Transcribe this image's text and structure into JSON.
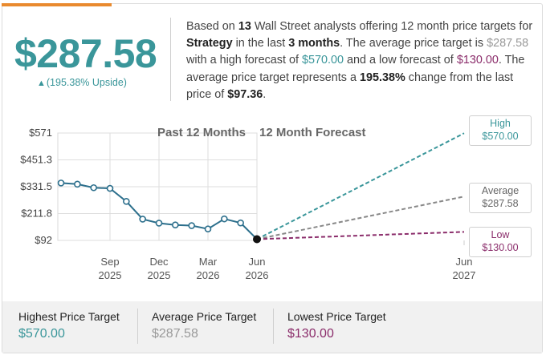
{
  "summary": {
    "price": "$287.58",
    "upside_arrow": "▲",
    "upside": "(195.38% Upside)",
    "desc_parts": {
      "p1": "Based on ",
      "analysts": "13",
      "p2": " Wall Street analysts offering 12 month price targets for ",
      "company": "Strategy",
      "p3": " in the last ",
      "months": "3 months",
      "p4": ". The average price target is ",
      "avg": "$287.58",
      "p5": " with a high forecast of ",
      "high": "$570.00",
      "p6": " and a low forecast of ",
      "low": "$130.00",
      "p7": ". The average price target represents a ",
      "change": "195.38%",
      "p8": " change from the last price of ",
      "last": "$97.36",
      "p9": "."
    }
  },
  "colors": {
    "teal": "#3a969a",
    "gray": "#999999",
    "plum": "#8b2d6b",
    "history_line": "#2c6f8c",
    "accent": "#e98a2e"
  },
  "chart_data": {
    "type": "line",
    "section_labels": [
      "Past 12 Months",
      "12 Month Forecast"
    ],
    "y_ticks": [
      "$571",
      "$451.3",
      "$331.5",
      "$211.8",
      "$92"
    ],
    "ylim": [
      92,
      571
    ],
    "x_ticks": [
      {
        "month": "Sep",
        "year": "2025"
      },
      {
        "month": "Dec",
        "year": "2025"
      },
      {
        "month": "Mar",
        "year": "2026"
      },
      {
        "month": "Jun",
        "year": "2026"
      },
      {
        "month": "Jun",
        "year": "2027"
      }
    ],
    "history": {
      "name": "Price",
      "x": [
        "2025-06",
        "2025-07",
        "2025-08",
        "2025-09",
        "2025-10",
        "2025-11",
        "2025-12",
        "2026-01",
        "2026-02",
        "2026-03",
        "2026-04",
        "2026-05",
        "2026-06"
      ],
      "values": [
        348,
        343,
        327,
        324,
        266,
        187,
        169,
        161,
        158,
        143,
        188,
        170,
        97.36
      ]
    },
    "forecast": [
      {
        "name": "High",
        "label": "High",
        "value": "$570.00",
        "end": 570.0,
        "color": "#3a969a"
      },
      {
        "name": "Average",
        "label": "Average",
        "value": "$287.58",
        "end": 287.58,
        "color": "#888888"
      },
      {
        "name": "Low",
        "label": "Low",
        "value": "$130.00",
        "end": 130.0,
        "color": "#8b2d6b"
      }
    ],
    "grid": true
  },
  "footer": {
    "highest_label": "Highest Price Target",
    "highest_value": "$570.00",
    "average_label": "Average Price Target",
    "average_value": "$287.58",
    "lowest_label": "Lowest Price Target",
    "lowest_value": "$130.00"
  }
}
